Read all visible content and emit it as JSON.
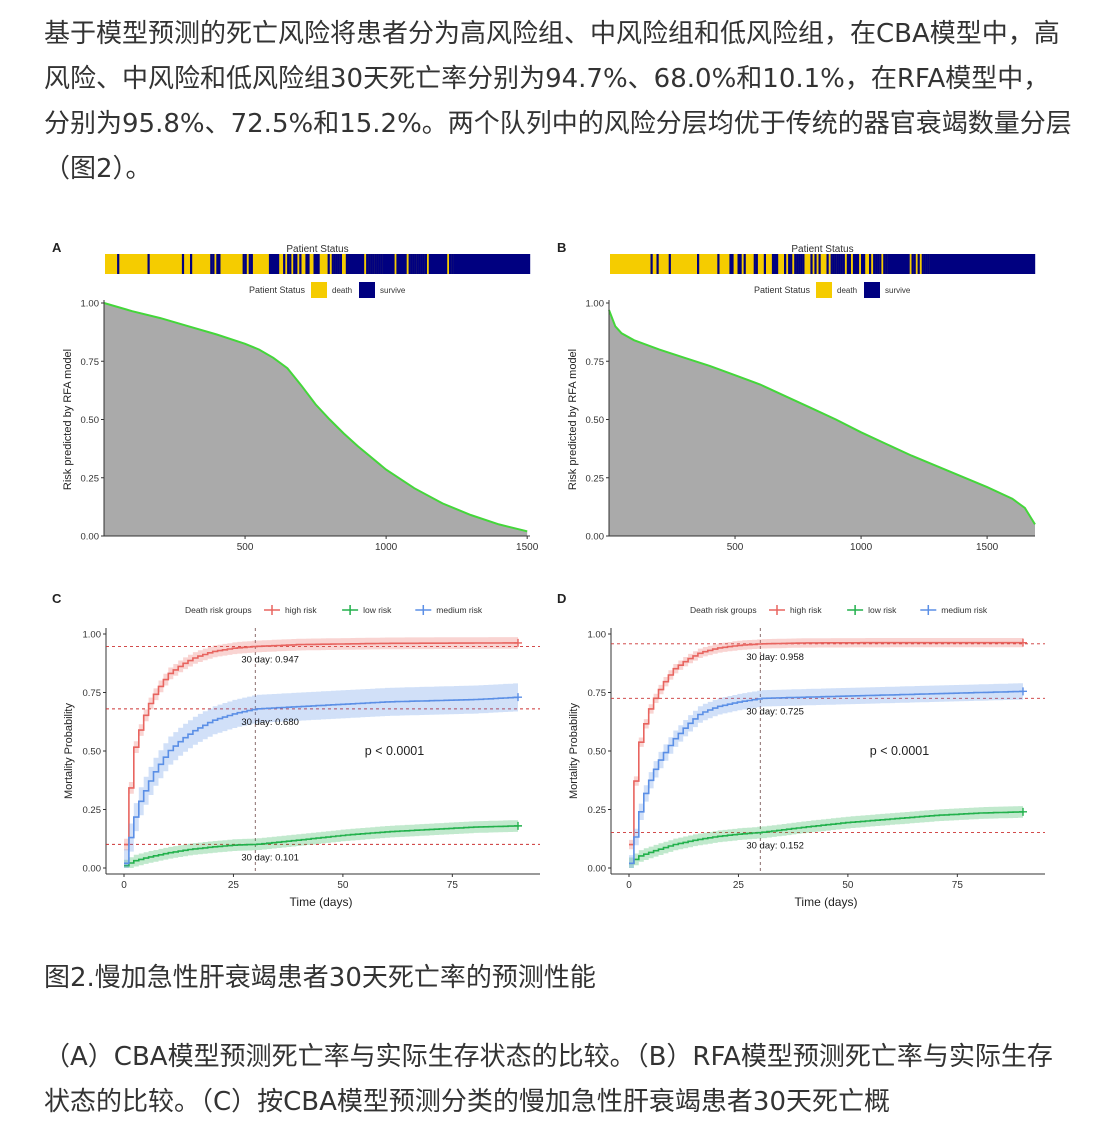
{
  "article": {
    "intro_paragraph": "基于模型预测的死亡风险将患者分为高风险组、中风险组和低风险组，在CBA模型中，高风险、中风险和低风险组30天死亡率分别为94.7%、68.0%和10.1%，在RFA模型中，分别为95.8%、72.5%和15.2%。两个队列中的风险分层均优于传统的器官衰竭数量分层（图2）。",
    "figure_caption": "图2.慢加急性肝衰竭患者30天死亡率的预测性能",
    "figure_description": "（A）CBA模型预测死亡率与实际生存状态的比较。（B）RFA模型预测死亡率与实际生存状态的比较。（C）按CBA模型预测分类的慢加急性肝衰竭患者30天死亡概"
  },
  "colors": {
    "death": "#F5CC00",
    "survive": "#000080",
    "high_risk": "#E8645F",
    "low_risk": "#22B14C",
    "medium_risk": "#5B8FE6",
    "risk_curve": "#44D63A",
    "risk_fill": "#AAAAAA"
  },
  "chart_data": [
    {
      "panel": "A",
      "type": "area",
      "status_bar": {
        "title": "Patient Status",
        "legend_title": "Patient Status",
        "legend": [
          "death",
          "survive"
        ]
      },
      "ylabel": "Risk predicted by RFA model",
      "xlabel": "",
      "xlim": [
        0,
        1510
      ],
      "ylim": [
        0,
        1
      ],
      "x_ticks": [
        "500",
        "1000",
        "1500"
      ],
      "y_ticks": [
        "0.00",
        "0.25",
        "0.50",
        "0.75",
        "1.00"
      ],
      "x": [
        0,
        100,
        200,
        300,
        400,
        500,
        550,
        600,
        650,
        700,
        750,
        800,
        850,
        900,
        1000,
        1100,
        1200,
        1300,
        1400,
        1500
      ],
      "y": [
        1.0,
        0.965,
        0.935,
        0.9,
        0.865,
        0.825,
        0.8,
        0.765,
        0.72,
        0.645,
        0.565,
        0.5,
        0.44,
        0.385,
        0.285,
        0.205,
        0.14,
        0.09,
        0.05,
        0.02
      ]
    },
    {
      "panel": "B",
      "type": "area",
      "status_bar": {
        "title": "Patient Status",
        "legend_title": "Patient Status",
        "legend": [
          "death",
          "survive"
        ]
      },
      "ylabel": "Risk predicted by RFA model",
      "xlabel": "",
      "xlim": [
        0,
        1690
      ],
      "ylim": [
        0,
        1
      ],
      "x_ticks": [
        "500",
        "1000",
        "1500"
      ],
      "y_ticks": [
        "0.00",
        "0.25",
        "0.50",
        "0.75",
        "1.00"
      ],
      "x": [
        0,
        25,
        50,
        100,
        200,
        300,
        400,
        500,
        600,
        700,
        800,
        900,
        1000,
        1100,
        1200,
        1300,
        1400,
        1500,
        1600,
        1650,
        1690
      ],
      "y": [
        0.97,
        0.9,
        0.87,
        0.84,
        0.8,
        0.765,
        0.73,
        0.69,
        0.65,
        0.6,
        0.55,
        0.5,
        0.445,
        0.395,
        0.345,
        0.3,
        0.255,
        0.21,
        0.16,
        0.12,
        0.05
      ]
    },
    {
      "panel": "C",
      "type": "line",
      "legend_title": "Death risk groups",
      "xlabel": "Time (days)",
      "ylabel": "Mortality Probability",
      "xlim": [
        0,
        90
      ],
      "ylim": [
        0,
        1
      ],
      "x_ticks": [
        "0",
        "25",
        "50",
        "75"
      ],
      "y_ticks": [
        "0.00",
        "0.25",
        "0.50",
        "0.75",
        "1.00"
      ],
      "vline_day": 30,
      "p_value": "p < 0.0001",
      "series": [
        {
          "name": "high risk",
          "label": "30 day: 0.947",
          "ref": 0.947,
          "band": 0.025,
          "x": [
            0,
            1,
            2,
            4,
            6,
            8,
            10,
            13,
            16,
            20,
            25,
            30,
            40,
            60,
            90
          ],
          "y": [
            0.1,
            0.32,
            0.5,
            0.63,
            0.72,
            0.78,
            0.83,
            0.87,
            0.9,
            0.925,
            0.94,
            0.947,
            0.955,
            0.96,
            0.962
          ]
        },
        {
          "name": "low risk",
          "label": "30 day: 0.101",
          "ref": 0.101,
          "band": 0.025,
          "x": [
            0,
            2,
            5,
            10,
            15,
            20,
            25,
            30,
            40,
            50,
            60,
            70,
            80,
            90
          ],
          "y": [
            0.01,
            0.03,
            0.045,
            0.065,
            0.08,
            0.09,
            0.098,
            0.101,
            0.12,
            0.14,
            0.155,
            0.165,
            0.175,
            0.18
          ]
        },
        {
          "name": "medium risk",
          "label": "30 day: 0.680",
          "ref": 0.68,
          "band": 0.06,
          "x": [
            0,
            1,
            2,
            3,
            5,
            7,
            10,
            13,
            16,
            20,
            25,
            30,
            40,
            50,
            60,
            70,
            80,
            90
          ],
          "y": [
            0.02,
            0.12,
            0.2,
            0.27,
            0.35,
            0.42,
            0.5,
            0.55,
            0.59,
            0.63,
            0.66,
            0.68,
            0.69,
            0.7,
            0.71,
            0.715,
            0.72,
            0.73
          ]
        }
      ]
    },
    {
      "panel": "D",
      "type": "line",
      "legend_title": "Death risk groups",
      "xlabel": "Time (days)",
      "ylabel": "Mortality Probability",
      "xlim": [
        0,
        90
      ],
      "ylim": [
        0,
        1
      ],
      "x_ticks": [
        "0",
        "25",
        "50",
        "75"
      ],
      "y_ticks": [
        "0.00",
        "0.25",
        "0.50",
        "0.75",
        "1.00"
      ],
      "vline_day": 30,
      "p_value": "p < 0.0001",
      "series": [
        {
          "name": "high risk",
          "label": "30 day: 0.958",
          "ref": 0.958,
          "band": 0.02,
          "x": [
            0,
            1,
            2,
            4,
            6,
            8,
            10,
            13,
            16,
            20,
            25,
            30,
            40,
            60,
            90
          ],
          "y": [
            0.1,
            0.35,
            0.52,
            0.66,
            0.74,
            0.8,
            0.85,
            0.89,
            0.92,
            0.94,
            0.952,
            0.958,
            0.962,
            0.963,
            0.963
          ]
        },
        {
          "name": "low risk",
          "label": "30 day: 0.152",
          "ref": 0.152,
          "band": 0.025,
          "x": [
            0,
            2,
            5,
            10,
            15,
            20,
            25,
            30,
            40,
            50,
            60,
            70,
            80,
            90
          ],
          "y": [
            0.02,
            0.05,
            0.07,
            0.1,
            0.12,
            0.135,
            0.145,
            0.152,
            0.175,
            0.195,
            0.21,
            0.225,
            0.235,
            0.24
          ]
        },
        {
          "name": "medium risk",
          "label": "30 day: 0.725",
          "ref": 0.725,
          "band": 0.035,
          "x": [
            0,
            1,
            2,
            3,
            5,
            7,
            10,
            13,
            16,
            20,
            25,
            30,
            40,
            50,
            60,
            70,
            80,
            90
          ],
          "y": [
            0.02,
            0.12,
            0.22,
            0.3,
            0.4,
            0.47,
            0.55,
            0.61,
            0.66,
            0.69,
            0.71,
            0.725,
            0.73,
            0.735,
            0.74,
            0.745,
            0.75,
            0.755
          ]
        }
      ]
    }
  ]
}
